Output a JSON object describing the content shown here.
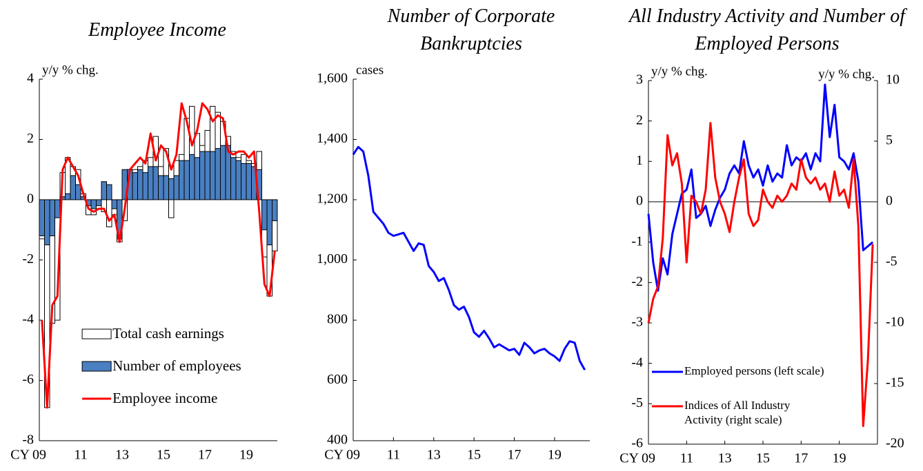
{
  "chart_data": [
    {
      "type": "bar",
      "title": "Employee Income",
      "y_unit": "y/y % chg.",
      "x_prefix": "CY",
      "categories": [
        "09",
        null,
        null,
        null,
        null,
        null,
        null,
        null,
        "11",
        null,
        null,
        null,
        null,
        null,
        null,
        null,
        "13",
        null,
        null,
        null,
        null,
        null,
        null,
        null,
        "15",
        null,
        null,
        null,
        null,
        null,
        null,
        null,
        "17",
        null,
        null,
        null,
        null,
        null,
        null,
        null,
        "19",
        null,
        null,
        null,
        null,
        null
      ],
      "series": [
        {
          "name": "Total cash earnings",
          "color": "#ffffff",
          "values": [
            -1.3,
            -6.9,
            -4.1,
            -4.0,
            0.9,
            1.4,
            1.1,
            1.0,
            0.2,
            -0.5,
            -0.5,
            -0.3,
            -0.4,
            -0.9,
            -0.5,
            -1.4,
            -0.7,
            1.0,
            1.0,
            1.1,
            1.3,
            1.4,
            2.1,
            1.1,
            1.7,
            -0.6,
            1.3,
            1.5,
            2.7,
            3.1,
            2.2,
            1.8,
            2.3,
            3.1,
            2.9,
            2.6,
            2.1,
            1.6,
            1.4,
            1.5,
            1.3,
            1.2,
            1.6,
            -1.9,
            -3.2,
            -1.7
          ]
        },
        {
          "name": "Number of employees",
          "color": "#4a7fc1",
          "values": [
            -1.2,
            -1.5,
            -1.2,
            -0.6,
            0.1,
            0.2,
            0.8,
            0.5,
            0.1,
            -0.2,
            -0.3,
            -0.2,
            0.6,
            0.5,
            -0.3,
            -1.3,
            1.0,
            1.0,
            0.9,
            1.0,
            0.9,
            1.1,
            1.1,
            0.8,
            0.8,
            0.7,
            0.8,
            1.3,
            1.3,
            1.5,
            1.4,
            1.6,
            1.6,
            1.6,
            1.7,
            1.8,
            1.8,
            1.4,
            1.3,
            1.2,
            1.2,
            1.1,
            1.0,
            -1.0,
            -1.5,
            -0.7
          ]
        },
        {
          "name": "Employee income",
          "type": "line",
          "color": "#ff0000",
          "values": [
            -4.0,
            -6.9,
            -3.5,
            -3.2,
            1.0,
            1.4,
            1.1,
            0.8,
            0.2,
            -0.3,
            -0.4,
            -0.3,
            -0.3,
            -0.7,
            -0.5,
            -1.4,
            -0.3,
            1.0,
            1.2,
            1.4,
            1.2,
            2.2,
            1.3,
            1.8,
            1.6,
            1.0,
            1.5,
            3.2,
            2.6,
            1.8,
            2.3,
            3.2,
            3.0,
            2.6,
            2.8,
            2.7,
            1.6,
            1.5,
            1.6,
            1.6,
            1.4,
            1.6,
            -0.4,
            -2.8,
            -3.2,
            -1.7
          ]
        }
      ],
      "ylim": [
        -8,
        4
      ],
      "yticks": [
        -8,
        -6,
        -4,
        -2,
        0,
        2,
        4
      ],
      "legend": "lower center"
    },
    {
      "type": "line",
      "title": "Number of Corporate Bankruptcies",
      "y_unit": "cases",
      "x_prefix": "CY",
      "color": "#0000ff",
      "x": [
        2009,
        2009.25,
        2009.5,
        2009.75,
        2010,
        2010.25,
        2010.5,
        2010.75,
        2011,
        2011.25,
        2011.5,
        2011.75,
        2012,
        2012.25,
        2012.5,
        2012.75,
        2013,
        2013.25,
        2013.5,
        2013.75,
        2014,
        2014.25,
        2014.5,
        2014.75,
        2015,
        2015.25,
        2015.5,
        2015.75,
        2016,
        2016.25,
        2016.5,
        2016.75,
        2017,
        2017.25,
        2017.5,
        2017.75,
        2018,
        2018.25,
        2018.5,
        2018.75,
        2019,
        2019.25,
        2019.5,
        2019.75,
        2020,
        2020.25,
        2020.5
      ],
      "values": [
        1350,
        1375,
        1360,
        1280,
        1160,
        1140,
        1120,
        1090,
        1080,
        1085,
        1090,
        1060,
        1030,
        1055,
        1050,
        980,
        960,
        930,
        940,
        900,
        850,
        835,
        845,
        810,
        760,
        745,
        765,
        740,
        710,
        720,
        710,
        700,
        705,
        685,
        725,
        710,
        690,
        700,
        705,
        690,
        680,
        665,
        705,
        730,
        725,
        665,
        635
      ],
      "xlim": [
        2009,
        2020.75
      ],
      "xticks": [
        {
          "value": 2009,
          "label": "09"
        },
        {
          "value": 2011,
          "label": "11"
        },
        {
          "value": 2013,
          "label": "13"
        },
        {
          "value": 2015,
          "label": "15"
        },
        {
          "value": 2017,
          "label": "17"
        },
        {
          "value": 2019,
          "label": "19"
        }
      ],
      "ylim": [
        400,
        1600
      ],
      "yticks": [
        400,
        600,
        800,
        {
          "value": 1000,
          "label": "1,000"
        },
        {
          "value": 1200,
          "label": "1,200"
        },
        {
          "value": 1400,
          "label": "1,400"
        },
        {
          "value": 1600,
          "label": "1,600"
        }
      ]
    },
    {
      "type": "line",
      "title": "All Industry Activity and Number of Employed Persons",
      "y_unit": "y/y % chg.",
      "y2_unit": "y/y % chg.",
      "x_prefix": "CY",
      "x": [
        2009,
        2009.25,
        2009.5,
        2009.75,
        2010,
        2010.25,
        2010.5,
        2010.75,
        2011,
        2011.25,
        2011.5,
        2011.75,
        2012,
        2012.25,
        2012.5,
        2012.75,
        2013,
        2013.25,
        2013.5,
        2013.75,
        2014,
        2014.25,
        2014.5,
        2014.75,
        2015,
        2015.25,
        2015.5,
        2015.75,
        2016,
        2016.25,
        2016.5,
        2016.75,
        2017,
        2017.25,
        2017.5,
        2017.75,
        2018,
        2018.25,
        2018.5,
        2018.75,
        2019,
        2019.25,
        2019.5,
        2019.75,
        2020,
        2020.25,
        2020.5,
        2020.75
      ],
      "series": [
        {
          "name": "Employed persons (left scale)",
          "color": "#0000ff",
          "values": [
            -0.3,
            -1.5,
            -2.2,
            -1.4,
            -1.8,
            -0.8,
            -0.3,
            0.2,
            0.3,
            0.8,
            -0.4,
            -0.3,
            -0.1,
            -0.6,
            -0.2,
            0.1,
            0.3,
            0.7,
            0.9,
            0.7,
            1.5,
            0.9,
            0.6,
            0.8,
            0.4,
            0.9,
            0.5,
            0.7,
            0.6,
            1.4,
            0.9,
            1.1,
            1.0,
            1.2,
            0.8,
            1.2,
            1.0,
            2.9,
            1.6,
            2.4,
            1.1,
            1.0,
            0.8,
            1.2,
            0.5,
            -1.2,
            -1.1,
            -1.0
          ]
        },
        {
          "name": "Indices of All Industry Activity (right scale)",
          "color": "#ff0000",
          "axis": "y2",
          "values": [
            -10,
            -8,
            -7,
            -3,
            5.5,
            3,
            4,
            1.5,
            -5,
            0.5,
            0,
            -1,
            1,
            6.5,
            2,
            0,
            -1,
            -2.5,
            0,
            2,
            3.5,
            -1,
            -2,
            -1.5,
            1,
            0,
            -0.5,
            0.5,
            0,
            0.5,
            1.5,
            1,
            3.5,
            2,
            1.5,
            2,
            1,
            1.5,
            0,
            2.5,
            0.5,
            1,
            -0.5,
            3.5,
            -2,
            -18.5,
            -13,
            -3.5
          ]
        }
      ],
      "xlim": [
        2009,
        2021
      ],
      "xticks": [
        {
          "value": 2009,
          "label": "09"
        },
        {
          "value": 2011,
          "label": "11"
        },
        {
          "value": 2013,
          "label": "13"
        },
        {
          "value": 2015,
          "label": "15"
        },
        {
          "value": 2017,
          "label": "17"
        },
        {
          "value": 2019,
          "label": "19"
        }
      ],
      "ylim": [
        -6,
        3
      ],
      "yticks": [
        -6,
        -5,
        -4,
        -3,
        -2,
        -1,
        0,
        1,
        2,
        3
      ],
      "y2lim": [
        -20,
        10
      ],
      "y2ticks": [
        -20,
        -15,
        -10,
        -5,
        0,
        5,
        10
      ],
      "legend": "lower left"
    }
  ]
}
